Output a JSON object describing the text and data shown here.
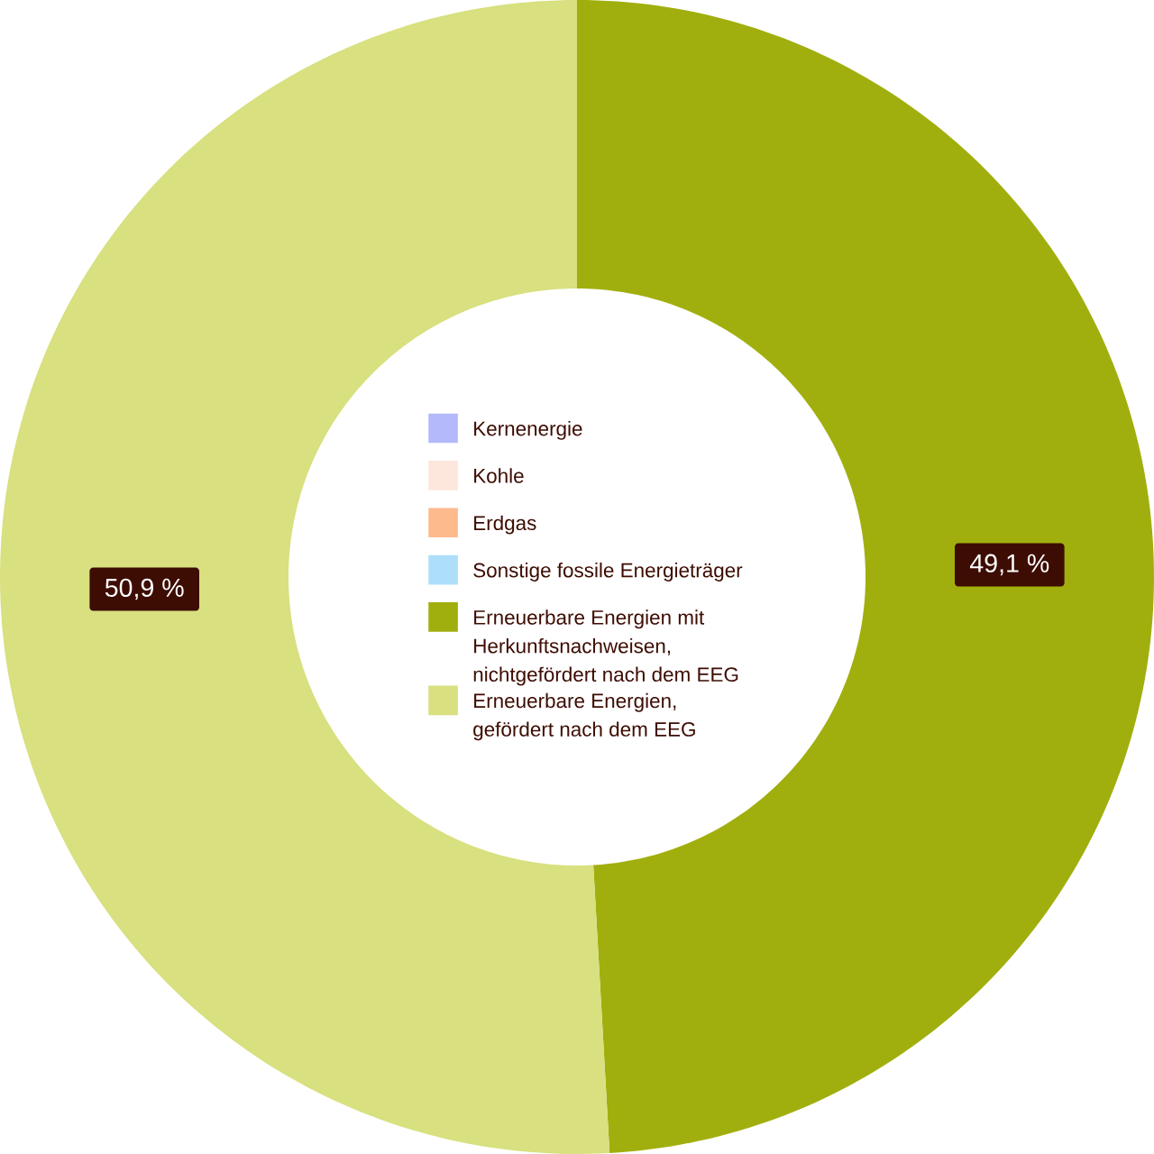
{
  "chart_data": {
    "type": "donut",
    "categories": [
      "Kernenergie",
      "Kohle",
      "Erdgas",
      "Sonstige fossile Energieträger",
      "Erneuerbare Energien mit Herkunftsnachweisen, nichtgefördert nach dem EEG",
      "Erneuerbare Energien, gefördert nach dem EEG"
    ],
    "values": [
      0,
      0,
      0,
      0,
      49.1,
      50.9
    ],
    "colors": [
      "#b4b9fb",
      "#fde6db",
      "#fdba8c",
      "#addffb",
      "#a1af0e",
      "#d8e07f"
    ],
    "value_labels": [
      null,
      null,
      null,
      null,
      "49,1 %",
      "50,9 %"
    ],
    "legend": "center"
  }
}
